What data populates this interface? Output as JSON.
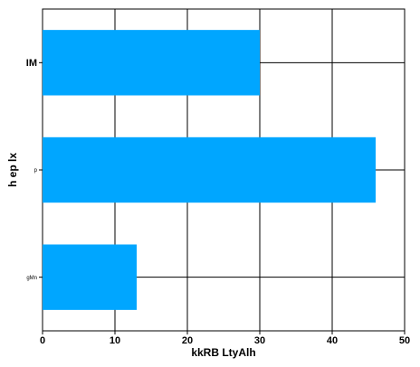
{
  "chart_data": {
    "type": "bar",
    "orientation": "horizontal",
    "categories": [
      "IM",
      "p",
      "gMn"
    ],
    "values": [
      30,
      46,
      13
    ],
    "xlabel": "kkRB LtyAlh",
    "ylabel": "h ep lx",
    "xlim": [
      0,
      50
    ],
    "xticks": [
      0,
      10,
      20,
      30,
      40,
      50
    ],
    "grid": true,
    "legend": "none",
    "bar_color": "#00a6ff"
  }
}
